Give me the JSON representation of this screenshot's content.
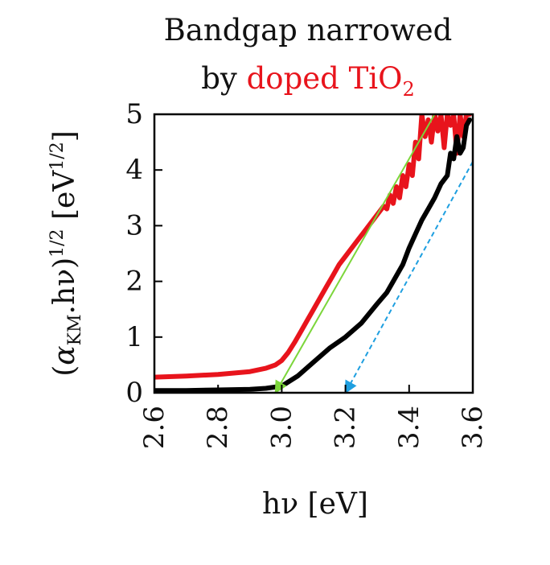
{
  "chart_data": {
    "type": "line",
    "title": {
      "line1": "Bandgap narrowed",
      "line2_prefix": "by ",
      "line2_highlight": "doped TiO",
      "line2_highlight_sub": "2",
      "highlight_color": "#e8141c"
    },
    "xlabel": "hν [eV]",
    "ylabel": {
      "open": "(",
      "alpha": "α",
      "alpha_sub": "KM",
      "mid": ".hν)",
      "sup": "1/2",
      "unit_open": " [eV",
      "unit_sup": "1/2",
      "unit_close": "]"
    },
    "xlim": [
      2.6,
      3.6
    ],
    "ylim": [
      0,
      5
    ],
    "xticks": [
      "2.6",
      "2.8",
      "3.0",
      "3.2",
      "3.4",
      "3.6"
    ],
    "yticks": [
      "0",
      "1",
      "2",
      "3",
      "4",
      "5"
    ],
    "grid": false,
    "legend": "none",
    "series": [
      {
        "color": "#e8141c",
        "x": [
          2.6,
          2.7,
          2.8,
          2.9,
          2.95,
          2.98,
          3.0,
          3.02,
          3.04,
          3.06,
          3.08,
          3.1,
          3.12,
          3.14,
          3.16,
          3.18,
          3.2,
          3.22,
          3.24,
          3.26,
          3.28,
          3.3,
          3.32,
          3.33,
          3.34,
          3.35,
          3.36,
          3.37,
          3.38,
          3.39,
          3.4,
          3.41,
          3.42,
          3.43,
          3.44,
          3.45,
          3.46,
          3.47,
          3.48,
          3.49,
          3.5,
          3.51,
          3.52,
          3.53,
          3.54,
          3.55,
          3.56,
          3.57,
          3.58,
          3.59
        ],
        "y": [
          0.28,
          0.3,
          0.33,
          0.38,
          0.44,
          0.5,
          0.58,
          0.72,
          0.9,
          1.1,
          1.3,
          1.5,
          1.7,
          1.9,
          2.1,
          2.3,
          2.45,
          2.6,
          2.75,
          2.9,
          3.05,
          3.2,
          3.35,
          3.3,
          3.55,
          3.4,
          3.7,
          3.5,
          3.9,
          3.7,
          4.1,
          3.9,
          4.5,
          4.2,
          5.0,
          4.6,
          4.9,
          4.5,
          5.0,
          4.7,
          5.0,
          4.4,
          5.0,
          4.8,
          5.0,
          4.3,
          5.0,
          4.6,
          5.0,
          5.0
        ]
      },
      {
        "color": "#000000",
        "x": [
          2.6,
          2.7,
          2.8,
          2.9,
          2.95,
          3.0,
          3.05,
          3.1,
          3.15,
          3.2,
          3.25,
          3.3,
          3.33,
          3.35,
          3.38,
          3.4,
          3.42,
          3.44,
          3.46,
          3.48,
          3.5,
          3.52,
          3.53,
          3.54,
          3.55,
          3.56,
          3.57,
          3.58,
          3.59
        ],
        "y": [
          0.04,
          0.04,
          0.05,
          0.06,
          0.08,
          0.12,
          0.3,
          0.55,
          0.8,
          1.0,
          1.25,
          1.6,
          1.8,
          2.0,
          2.3,
          2.6,
          2.85,
          3.1,
          3.3,
          3.5,
          3.75,
          3.9,
          4.3,
          4.2,
          4.6,
          4.3,
          4.4,
          4.8,
          4.9
        ]
      }
    ],
    "fit_lines": [
      {
        "color": "#7cd63b",
        "style": "solid",
        "x": [
          3.48,
          2.98
        ],
        "y": [
          5.0,
          0.0
        ]
      },
      {
        "color": "#1e9fe0",
        "style": "dashed",
        "x": [
          3.6,
          3.2
        ],
        "y": [
          4.15,
          0.0
        ]
      }
    ]
  }
}
